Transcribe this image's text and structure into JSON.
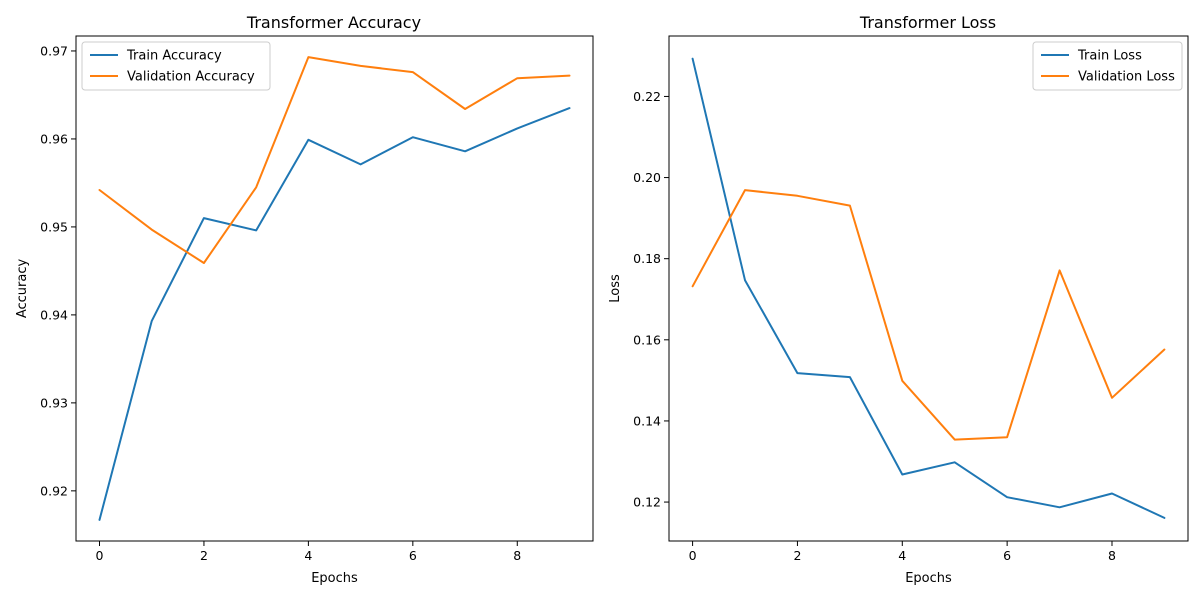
{
  "chart_data": [
    {
      "type": "line",
      "title": "Transformer Accuracy",
      "xlabel": "Epochs",
      "ylabel": "Accuracy",
      "x": [
        0,
        1,
        2,
        3,
        4,
        5,
        6,
        7,
        8,
        9
      ],
      "xlim": [
        -0.45,
        9.45
      ],
      "ylim": [
        0.9143,
        0.9717
      ],
      "xticks": [
        0,
        2,
        4,
        6,
        8
      ],
      "yticks": [
        0.92,
        0.93,
        0.94,
        0.95,
        0.96,
        0.97
      ],
      "ytick_labels": [
        "0.92",
        "0.93",
        "0.94",
        "0.95",
        "0.96",
        "0.97"
      ],
      "legend_position": "top-left",
      "grid": false,
      "series": [
        {
          "name": "Train Accuracy",
          "color": "#1f77b4",
          "values": [
            0.9167,
            0.9393,
            0.951,
            0.9496,
            0.9599,
            0.9571,
            0.9602,
            0.9586,
            0.9612,
            0.9635
          ]
        },
        {
          "name": "Validation Accuracy",
          "color": "#ff7f0e",
          "values": [
            0.9542,
            0.9497,
            0.9459,
            0.9545,
            0.9693,
            0.9683,
            0.9676,
            0.9634,
            0.9669,
            0.9672
          ]
        }
      ]
    },
    {
      "type": "line",
      "title": "Transformer Loss",
      "xlabel": "Epochs",
      "ylabel": "Loss",
      "x": [
        0,
        1,
        2,
        3,
        4,
        5,
        6,
        7,
        8,
        9
      ],
      "xlim": [
        -0.45,
        9.45
      ],
      "ylim": [
        0.1104,
        0.2349
      ],
      "xticks": [
        0,
        2,
        4,
        6,
        8
      ],
      "yticks": [
        0.12,
        0.14,
        0.16,
        0.18,
        0.2,
        0.22
      ],
      "ytick_labels": [
        "0.12",
        "0.14",
        "0.16",
        "0.18",
        "0.20",
        "0.22"
      ],
      "legend_position": "top-right",
      "grid": false,
      "series": [
        {
          "name": "Train Loss",
          "color": "#1f77b4",
          "values": [
            0.2293,
            0.1747,
            0.1518,
            0.1508,
            0.1268,
            0.1298,
            0.1212,
            0.1187,
            0.1221,
            0.1161
          ]
        },
        {
          "name": "Validation Loss",
          "color": "#ff7f0e",
          "values": [
            0.1732,
            0.1969,
            0.1955,
            0.1931,
            0.1499,
            0.1354,
            0.136,
            0.1771,
            0.1457,
            0.1576
          ]
        }
      ]
    }
  ]
}
